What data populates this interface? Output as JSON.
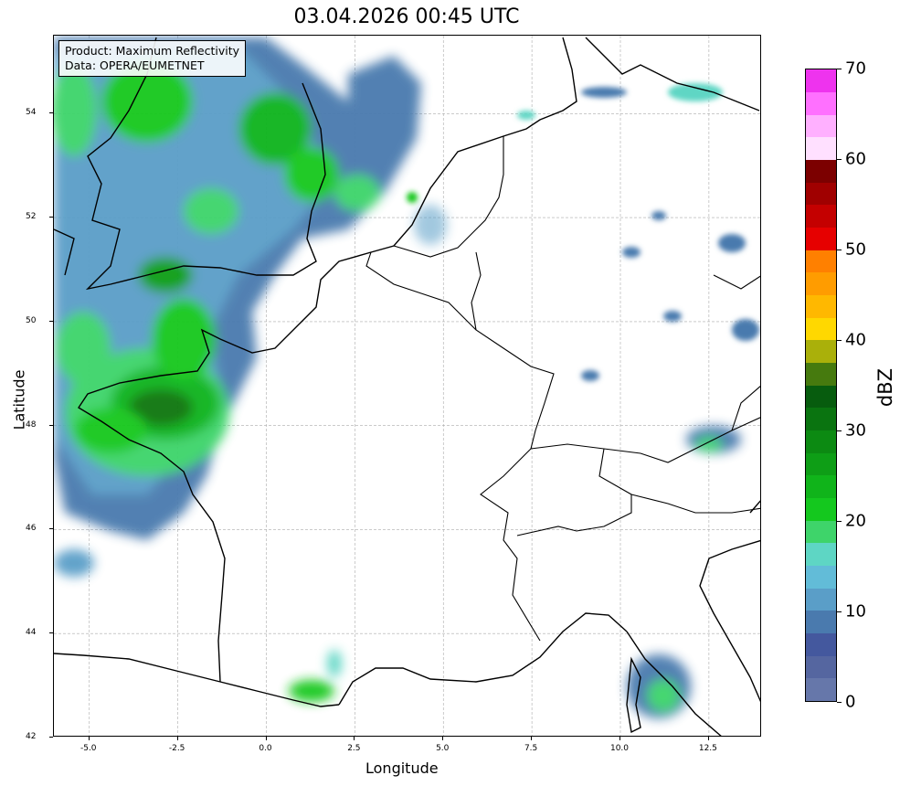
{
  "title": "03.04.2026 00:45 UTC",
  "info": {
    "line1": "Product: Maximum Reflectivity",
    "line2": "Data: OPERA/EUMETNET"
  },
  "axes": {
    "xlabel": "Longitude",
    "ylabel": "Latitude",
    "xlim": [
      -6,
      14
    ],
    "ylim": [
      42,
      55.5
    ],
    "xticks": [
      "-5.0",
      "-2.5",
      "0.0",
      "2.5",
      "5.0",
      "7.5",
      "10.0",
      "12.5"
    ],
    "yticks": [
      "42",
      "44",
      "46",
      "48",
      "50",
      "52",
      "54"
    ]
  },
  "colorbar": {
    "label": "dBZ",
    "ticks": [
      "0",
      "10",
      "20",
      "30",
      "40",
      "50",
      "60",
      "70"
    ],
    "range": [
      0,
      70
    ],
    "step": 2.5,
    "colors": [
      "#6677aa",
      "#5566a0",
      "#44589e",
      "#4a7aae",
      "#5a9ec8",
      "#62bcd8",
      "#5ed6c4",
      "#3ed46a",
      "#14c81e",
      "#10b41a",
      "#0e9e16",
      "#0c8a12",
      "#0a7410",
      "#075c0e",
      "#467a0e",
      "#aab00a",
      "#ffd800",
      "#ffb800",
      "#ff9c00",
      "#ff8000",
      "#e60000",
      "#c40000",
      "#a00000",
      "#7c0000",
      "#ffe0ff",
      "#ffb0ff",
      "#ff70ff",
      "#ee33ee"
    ]
  }
}
